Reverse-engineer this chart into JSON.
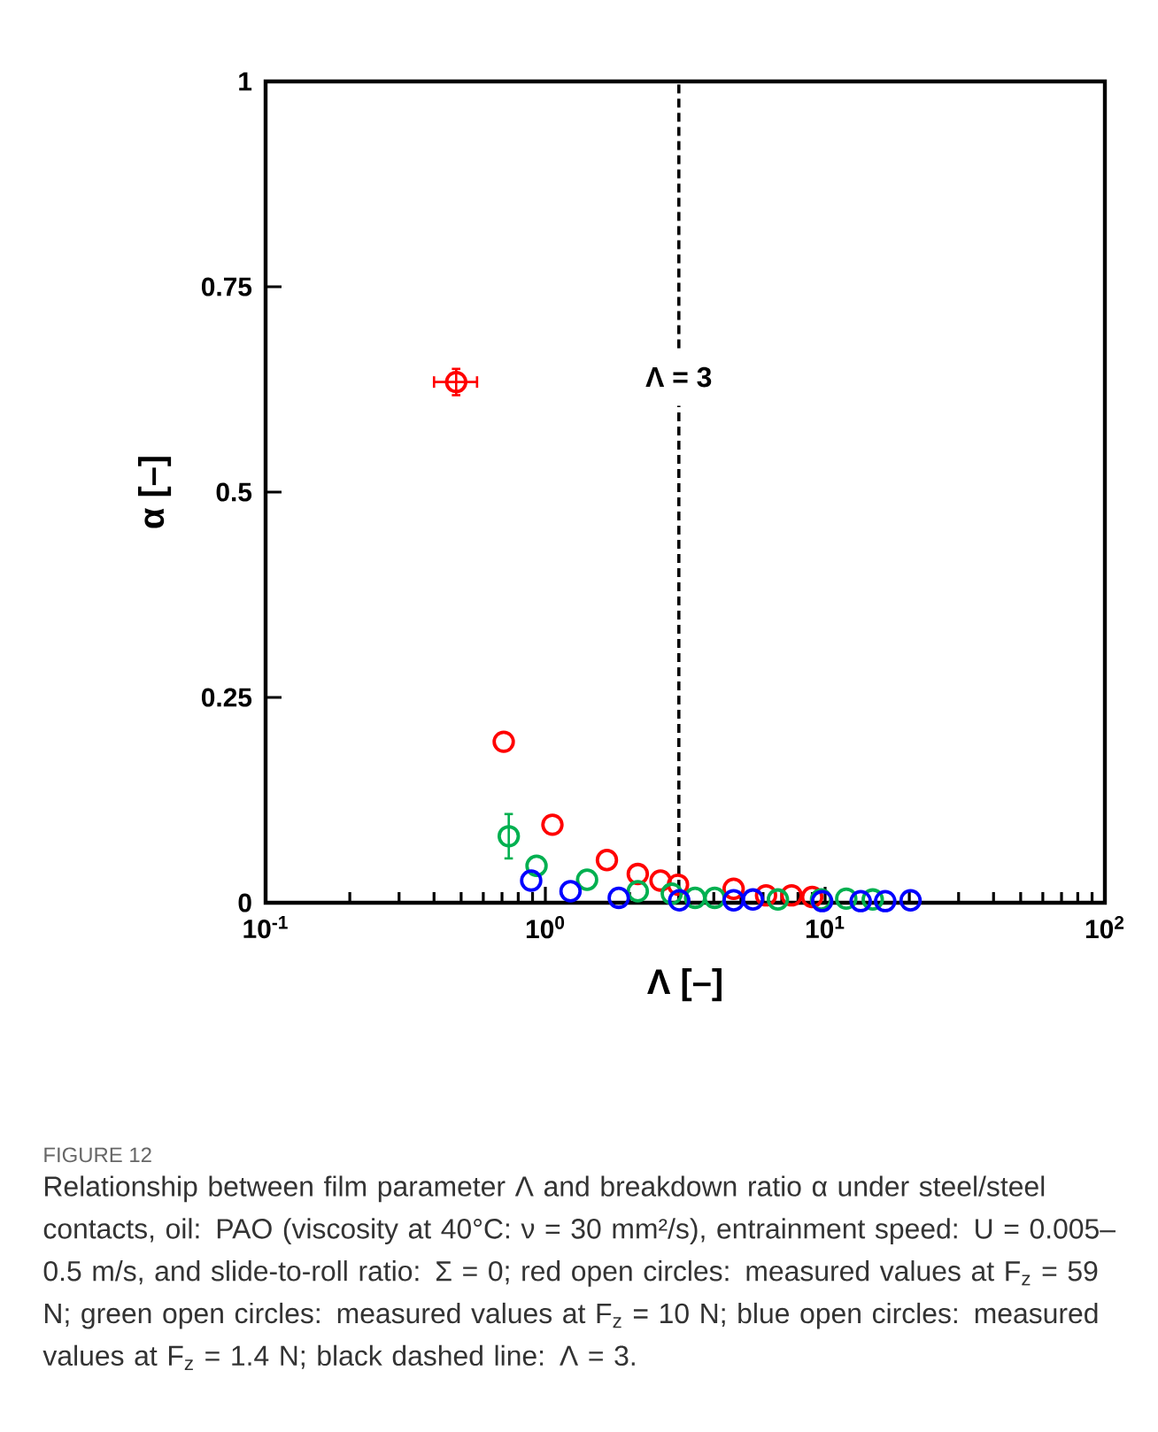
{
  "chart_data": {
    "type": "scatter",
    "xlabel": "Λ [–]",
    "ylabel": "α [–]",
    "log": "x",
    "xlim": [
      0.1,
      100
    ],
    "ylim": [
      0,
      1
    ],
    "xticks": [
      {
        "value": 0.1,
        "label": "10$^{-1}$"
      },
      {
        "value": 1,
        "label": "10$^{0}$"
      },
      {
        "value": 10,
        "label": "10$^{1}$"
      },
      {
        "value": 100,
        "label": "10$^{2}$"
      }
    ],
    "yticks": [
      0,
      0.25,
      0.5,
      0.75,
      1
    ],
    "marker": "circle",
    "series": [
      {
        "color": "#ff0000",
        "x": [
          0.48,
          0.71,
          1.06,
          1.66,
          2.14,
          2.58,
          2.98,
          4.71,
          6.15,
          7.59,
          8.99
        ],
        "values": [
          0.634,
          0.196,
          0.095,
          0.052,
          0.035,
          0.027,
          0.022,
          0.017,
          0.009,
          0.009,
          0.007
        ],
        "errors": [
          0.016,
          null,
          null,
          null,
          null,
          null,
          null,
          null,
          null,
          null,
          null
        ],
        "xerrors": [
          [
            0.4,
            0.57
          ],
          null,
          null,
          null,
          null,
          null,
          null,
          null,
          null,
          null,
          null
        ]
      },
      {
        "color": "#00b050",
        "x": [
          0.74,
          0.93,
          1.41,
          2.14,
          2.83,
          3.43,
          4.03,
          6.78,
          9.67,
          11.9,
          14.8
        ],
        "values": [
          0.081,
          0.045,
          0.028,
          0.014,
          0.011,
          0.006,
          0.006,
          0.004,
          0.004,
          0.005,
          0.004
        ],
        "errors": [
          0.027,
          null,
          null,
          null,
          null,
          null,
          null,
          null,
          null,
          null,
          null
        ]
      },
      {
        "color": "#0000ff",
        "x": [
          0.89,
          1.23,
          1.83,
          3.01,
          4.71,
          5.52,
          9.76,
          13.4,
          16.4,
          20.2
        ],
        "values": [
          0.027,
          0.014,
          0.006,
          0.003,
          0.003,
          0.004,
          0.002,
          0.002,
          0.002,
          0.003
        ]
      }
    ],
    "ref_lines": [
      {
        "axis": "x",
        "value": 3,
        "label": "Λ = 3",
        "color": "#000000",
        "line_style": "dashed"
      }
    ],
    "annotations": [
      "FIGURE 12",
      "Relationship between film parameter Λ and breakdown ratio α under steel/steel contacts, oil: PAO (viscosity at 40°C: ν = 30 mm²/s), entrainment speed: U = 0.005–0.5 m/s, and slide-to-roll ratio: Σ = 0; red open circles: measured values at F$_{z}$ = 59 N; green open circles: measured values at F$_{z}$ = 10 N; blue open circles: measured values at F$_{z}$ = 1.4 N; black dashed line: Λ = 3."
    ]
  }
}
